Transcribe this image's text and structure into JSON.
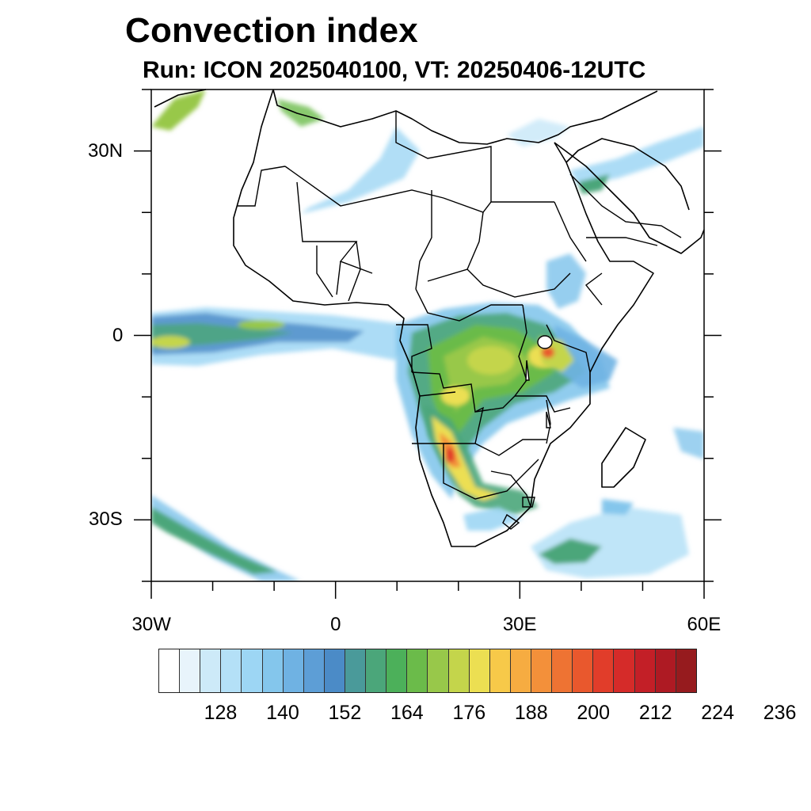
{
  "title": "Convection index",
  "subtitle": "Run: ICON 2025040100,  VT: 20250406-12UTC",
  "map": {
    "lon_range": [
      -30,
      60
    ],
    "lat_range": [
      -40,
      40
    ],
    "lon_ticks": [
      {
        "value": -30,
        "label": "30W"
      },
      {
        "value": 0,
        "label": "0"
      },
      {
        "value": 30,
        "label": "30E"
      },
      {
        "value": 60,
        "label": "60E"
      }
    ],
    "lat_ticks": [
      {
        "value": 30,
        "label": "30N"
      },
      {
        "value": 0,
        "label": "0"
      },
      {
        "value": -30,
        "label": "30S"
      }
    ],
    "field_peak_regions": [
      "Congo Basin",
      "Angola / Namibia",
      "East African Great Lakes",
      "Equatorial Atlantic band"
    ]
  },
  "colorbar": {
    "colors": [
      "#ffffff",
      "#e8f4fb",
      "#cdeaf8",
      "#b4e0f7",
      "#9dd6f4",
      "#84c6ec",
      "#6fb2e3",
      "#5d9ed6",
      "#4b8bc7",
      "#4a9a9a",
      "#4ba67a",
      "#4cb05a",
      "#6bbb4a",
      "#98c84a",
      "#c4d54b",
      "#ecdf52",
      "#f7c949",
      "#f6ac41",
      "#f3903a",
      "#ee7333",
      "#e9582d",
      "#e13d2a",
      "#d52b29",
      "#c31f27",
      "#ae1a23",
      "#961b1e"
    ],
    "labels": [
      "128",
      "140",
      "152",
      "164",
      "176",
      "188",
      "200",
      "212",
      "224",
      "236"
    ]
  }
}
